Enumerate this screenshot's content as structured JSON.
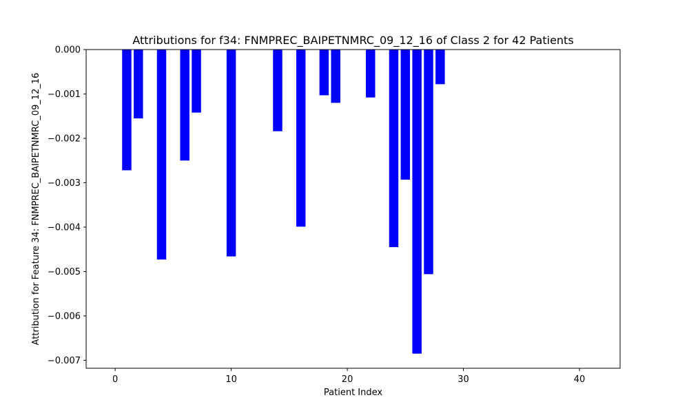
{
  "chart_data": {
    "type": "bar",
    "title": "Attributions for f34: FNMPREC_BAIPETNMRC_09_12_16 of Class 2 for 42 Patients",
    "xlabel": "Patient Index",
    "ylabel": "Attribution for Feature 34: FNMPREC_BAIPETNMRC_09_12_16",
    "xlim": [
      -2.5,
      43.5
    ],
    "ylim": [
      -0.00718,
      0.0
    ],
    "xticks": [
      0,
      10,
      20,
      30,
      40
    ],
    "yticks": [
      0.0,
      -0.001,
      -0.002,
      -0.003,
      -0.004,
      -0.005,
      -0.006,
      -0.007
    ],
    "xtick_labels": [
      "0",
      "10",
      "20",
      "30",
      "40"
    ],
    "ytick_labels": [
      "0.000",
      "−0.001",
      "−0.002",
      "−0.003",
      "−0.004",
      "−0.005",
      "−0.006",
      "−0.007"
    ],
    "bar_color": "#0000ff",
    "bar_width": 0.8,
    "grid": false,
    "x": [
      0,
      1,
      2,
      3,
      4,
      5,
      6,
      7,
      8,
      9,
      10,
      11,
      12,
      13,
      14,
      15,
      16,
      17,
      18,
      19,
      20,
      21,
      22,
      23,
      24,
      25,
      26,
      27,
      28,
      29,
      30,
      31,
      32,
      33,
      34,
      35,
      36,
      37,
      38,
      39,
      40,
      41
    ],
    "values": [
      0,
      -0.00272,
      -0.00155,
      0,
      -0.00473,
      0,
      -0.0025,
      -0.00142,
      0,
      0,
      -0.00466,
      0,
      0,
      0,
      -0.00184,
      0,
      -0.00399,
      0,
      -0.00103,
      -0.0012,
      0,
      0,
      -0.00108,
      0,
      -0.00445,
      -0.00293,
      -0.00685,
      -0.00506,
      -0.00078,
      0,
      0,
      0,
      0,
      0,
      0,
      0,
      0,
      0,
      0,
      0,
      0,
      0
    ]
  }
}
